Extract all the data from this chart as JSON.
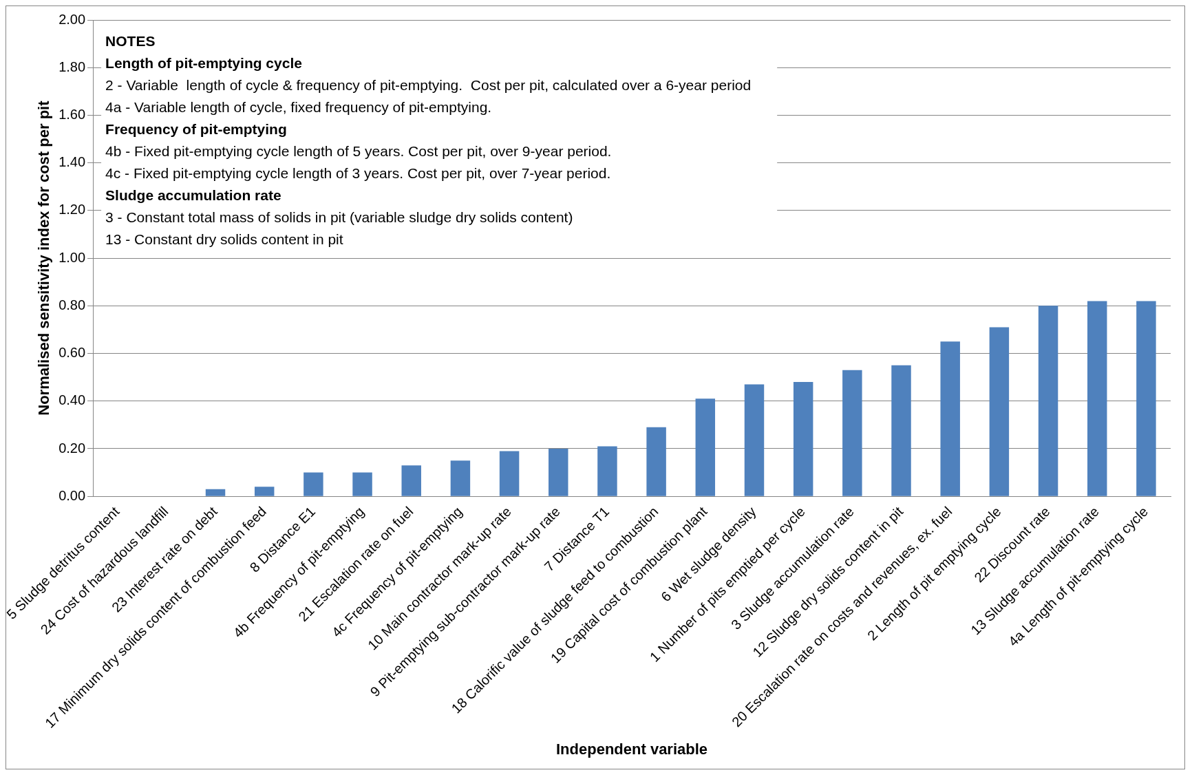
{
  "chart_data": {
    "type": "bar",
    "xlabel": "Independent variable",
    "ylabel": "Normalised sensitivity index for cost per pit",
    "categories": [
      "5 Sludge detritus content",
      "24 Cost of hazardous landfill",
      "23 Interest rate on debt",
      "17 Minimum dry solids content of combustion feed",
      "8 Distance E1",
      "4b Frequency of pit-emptying",
      "21 Escalation rate on fuel",
      "4c Frequency of pit-emptying",
      "10 Main contractor mark-up rate",
      "9 Pit-emptying sub-contractor mark-up rate",
      "7 Distance T1",
      "18 Calorific value of sludge feed to combustion",
      "19 Capital cost of combustion plant",
      "6 Wet sludge density",
      "1 Number of pits emptied per cycle",
      "3 Sludge accumulation rate",
      "12 Sludge dry solids content in pit",
      "20 Escalation rate on costs and revenues, ex. fuel",
      "2 Length of pit emptying cycle",
      "22 Discount rate",
      "13 Sludge accumulation rate",
      "4a Length of pit-emptying cycle"
    ],
    "values": [
      0,
      0,
      0.03,
      0.04,
      0.1,
      0.1,
      0.13,
      0.15,
      0.19,
      0.2,
      0.21,
      0.29,
      0.41,
      0.47,
      0.48,
      0.53,
      0.55,
      0.65,
      0.71,
      0.8,
      0.82,
      0.82
    ],
    "color": "#4f81bd",
    "ylim": [
      0,
      2
    ],
    "yticks": [
      {
        "value": 0,
        "label": "0.00"
      },
      {
        "value": 0.2,
        "label": "0.20"
      },
      {
        "value": 0.4,
        "label": "0.40"
      },
      {
        "value": 0.6,
        "label": "0.60"
      },
      {
        "value": 0.8,
        "label": "0.80"
      },
      {
        "value": 1,
        "label": "1.00"
      },
      {
        "value": 1.2,
        "label": "1.20"
      },
      {
        "value": 1.4,
        "label": "1.40"
      },
      {
        "value": 1.6,
        "label": "1.60"
      },
      {
        "value": 1.8,
        "label": "1.80"
      },
      {
        "value": 2,
        "label": "2.00"
      }
    ],
    "grid": "y",
    "legend": false,
    "annotations": [
      "NOTES",
      "Length of pit-emptying cycle",
      "2 - Variable  length of cycle & frequency of pit-emptying.  Cost per pit, calculated over a 6-year period",
      "4a - Variable length of cycle, fixed frequency of pit-emptying.",
      "Frequency of pit-emptying",
      "4b - Fixed pit-emptying cycle length of 5 years. Cost per pit, over 9-year period.",
      "4c - Fixed pit-emptying cycle length of 3 years. Cost per pit, over 7-year period.",
      "Sludge accumulation rate",
      "3 - Constant total mass of solids in pit (variable sludge dry solids content)",
      "13 - Constant dry solids content in pit"
    ]
  }
}
